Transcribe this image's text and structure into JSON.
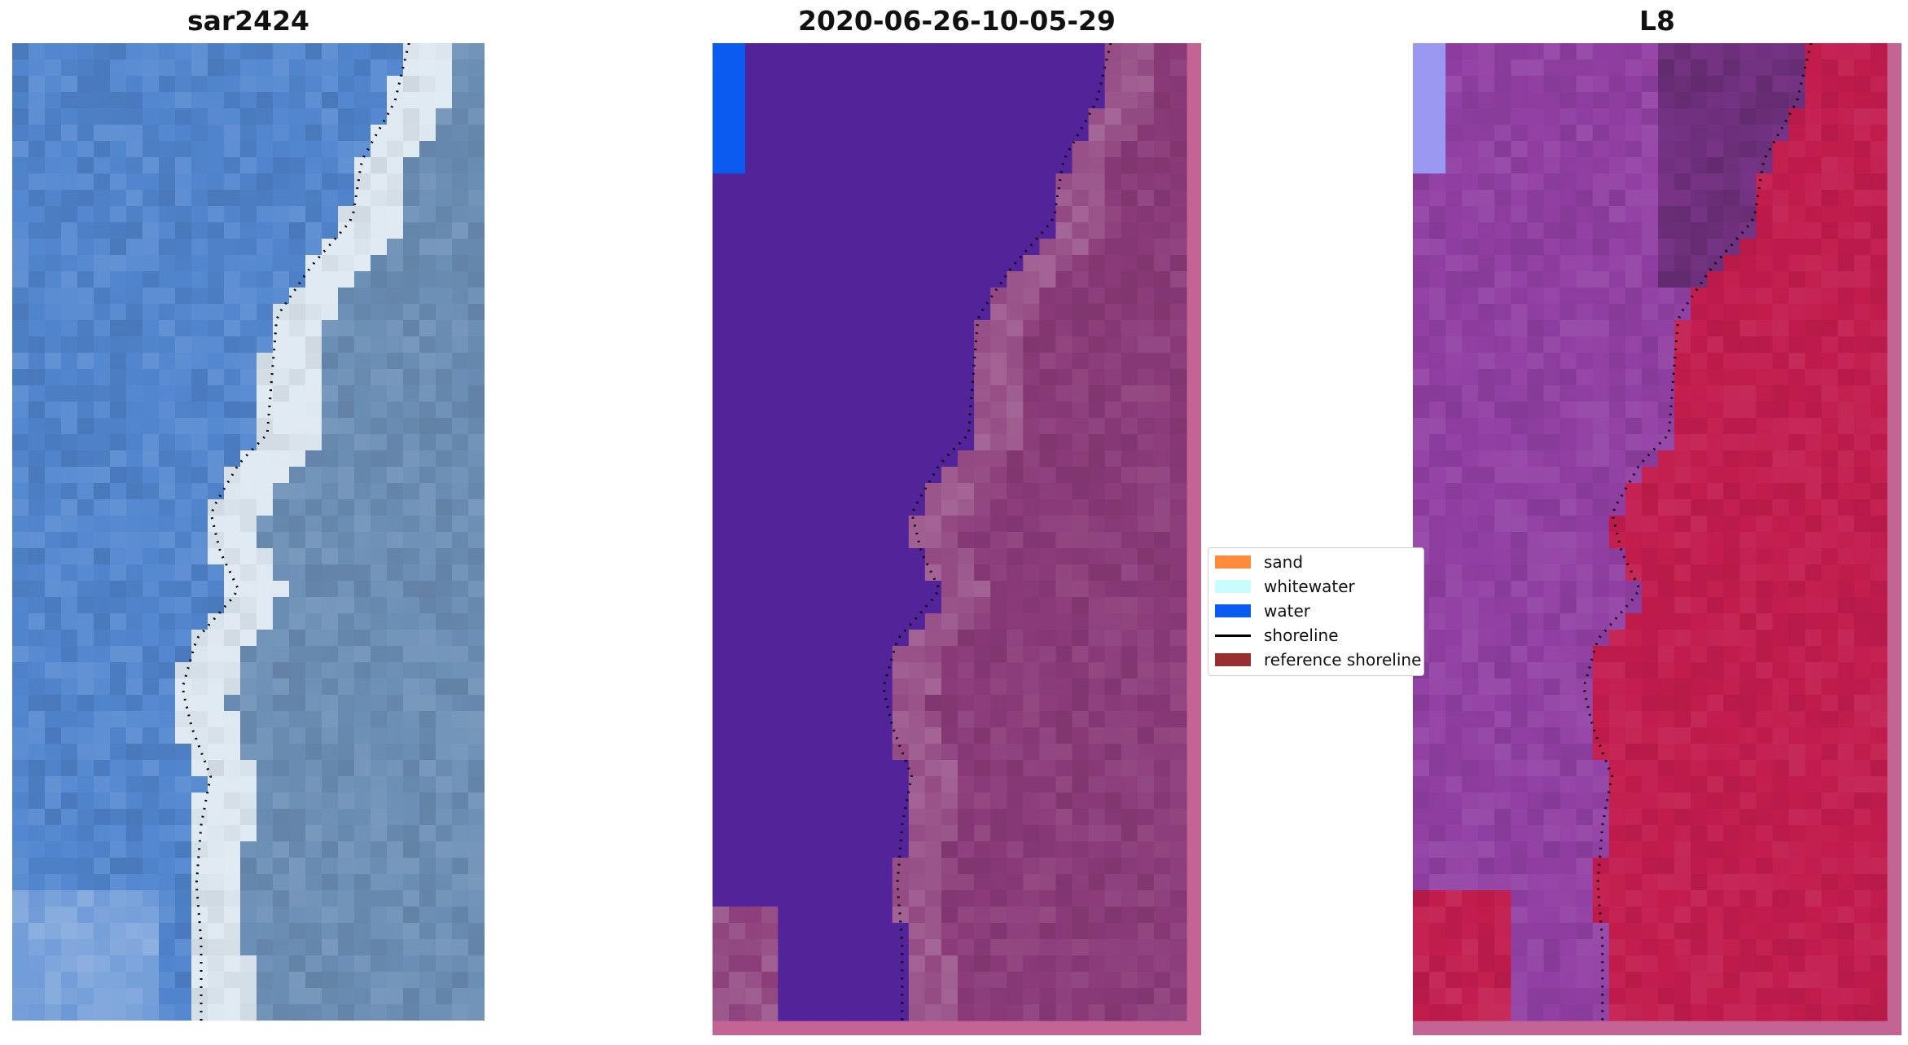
{
  "panels": {
    "left": {
      "title": "sar2424"
    },
    "middle": {
      "title": "2020-06-26-10-05-29"
    },
    "right": {
      "title": "L8"
    }
  },
  "legend": {
    "items": [
      {
        "label": "sand",
        "color": "#ff8c3a"
      },
      {
        "label": "whitewater",
        "color": "#c9fdfd"
      },
      {
        "label": "water",
        "color": "#0a5cf0"
      },
      {
        "label": "shoreline",
        "color": "#000000"
      },
      {
        "label": "reference shoreline",
        "color": "#992e2e"
      }
    ]
  },
  "colors": {
    "classified_water": "#53239a",
    "classified_land": "#8a3a78",
    "classified_border": "#c46494",
    "l8_water": "#913fa3",
    "l8_land": "#c21c4d",
    "rgb_water": "#5186cf",
    "rgb_land": "#6c8fb6",
    "rgb_surf": "#dfe9f2"
  }
}
